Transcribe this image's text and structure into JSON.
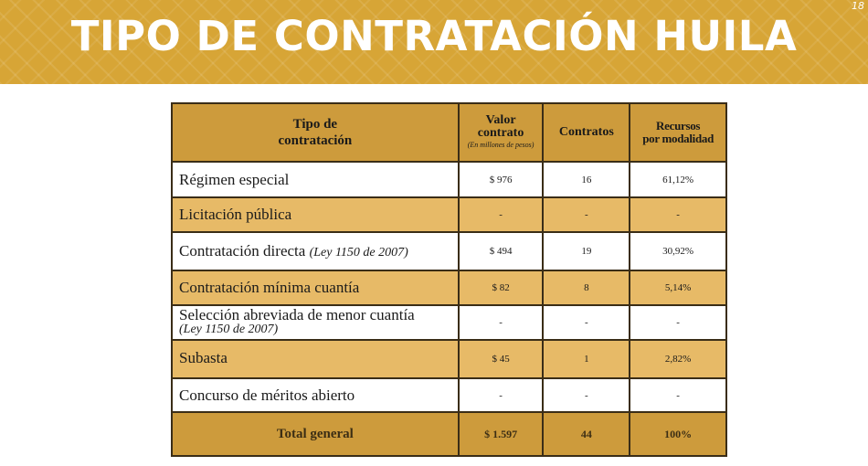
{
  "page": {
    "title": "TIPO DE CONTRATACIÓN HUILA",
    "page_number": "18"
  },
  "table": {
    "headers": {
      "tipo_line1": "Tipo de",
      "tipo_line2": "contratación",
      "valor_line1": "Valor",
      "valor_line2": "contrato",
      "valor_note": "(En millones de pesos)",
      "contratos": "Contratos",
      "recursos_line1": "Recursos",
      "recursos_line2": "por modalidad"
    },
    "rows": [
      {
        "name": "Régimen especial",
        "note": "",
        "valor": "$ 976",
        "contratos": "16",
        "recursos": "61,12%"
      },
      {
        "name": "Licitación pública",
        "note": "",
        "valor": "-",
        "contratos": "-",
        "recursos": "-"
      },
      {
        "name": "Contratación directa",
        "note": "(Ley 1150 de 2007)",
        "valor": "$ 494",
        "contratos": "19",
        "recursos": "30,92%"
      },
      {
        "name": "Contratación mínima cuantía",
        "note": "",
        "valor": "$ 82",
        "contratos": "8",
        "recursos": "5,14%"
      },
      {
        "name": "Selección abreviada de menor cuantía",
        "note": "(Ley 1150 de 2007)",
        "valor": "-",
        "contratos": "-",
        "recursos": "-"
      },
      {
        "name": "Subasta",
        "note": "",
        "valor": "$ 45",
        "contratos": "1",
        "recursos": "2,82%"
      },
      {
        "name": "Concurso de méritos abierto",
        "note": "",
        "valor": "-",
        "contratos": "-",
        "recursos": "-"
      }
    ],
    "total": {
      "label": "Total general",
      "valor": "$ 1.597",
      "contratos": "44",
      "recursos": "100%"
    }
  }
}
